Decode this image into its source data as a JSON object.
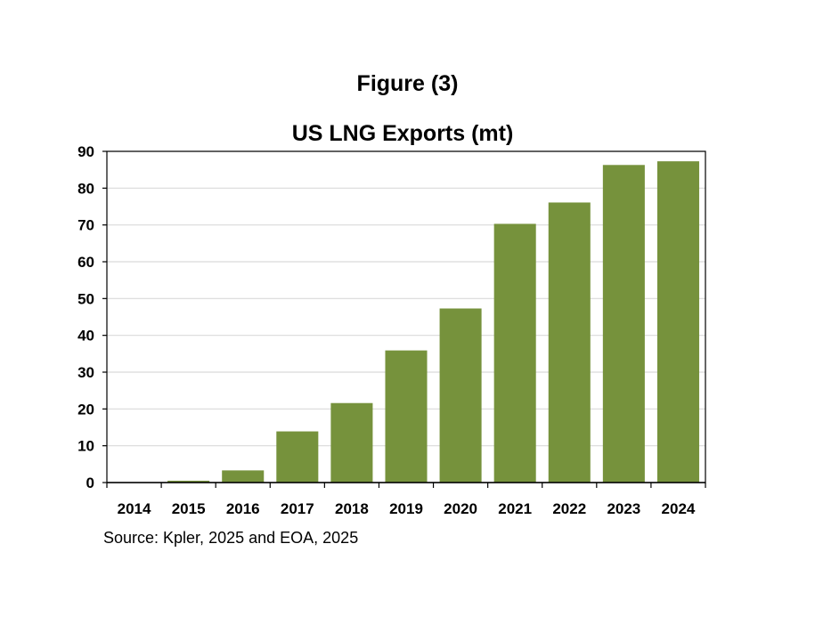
{
  "figure_label": "Figure (3)",
  "source": "Source: Kpler, 2025 and EOA, 2025",
  "colors": {
    "bar": "#76923c",
    "grid": "#d9d9d9",
    "axis": "#000000"
  },
  "chart_data": {
    "type": "bar",
    "title": "US LNG Exports (mt)",
    "xlabel": "",
    "ylabel": "",
    "categories": [
      "2014",
      "2015",
      "2016",
      "2017",
      "2018",
      "2019",
      "2020",
      "2021",
      "2022",
      "2023",
      "2024"
    ],
    "values": [
      0.1,
      0.5,
      3.3,
      13.9,
      21.6,
      35.9,
      47.3,
      70.3,
      76.1,
      86.3,
      87.3
    ],
    "ylim": [
      0,
      90
    ],
    "yticks": [
      0,
      10,
      20,
      30,
      40,
      50,
      60,
      70,
      80,
      90
    ],
    "grid": true,
    "legend": "none"
  }
}
